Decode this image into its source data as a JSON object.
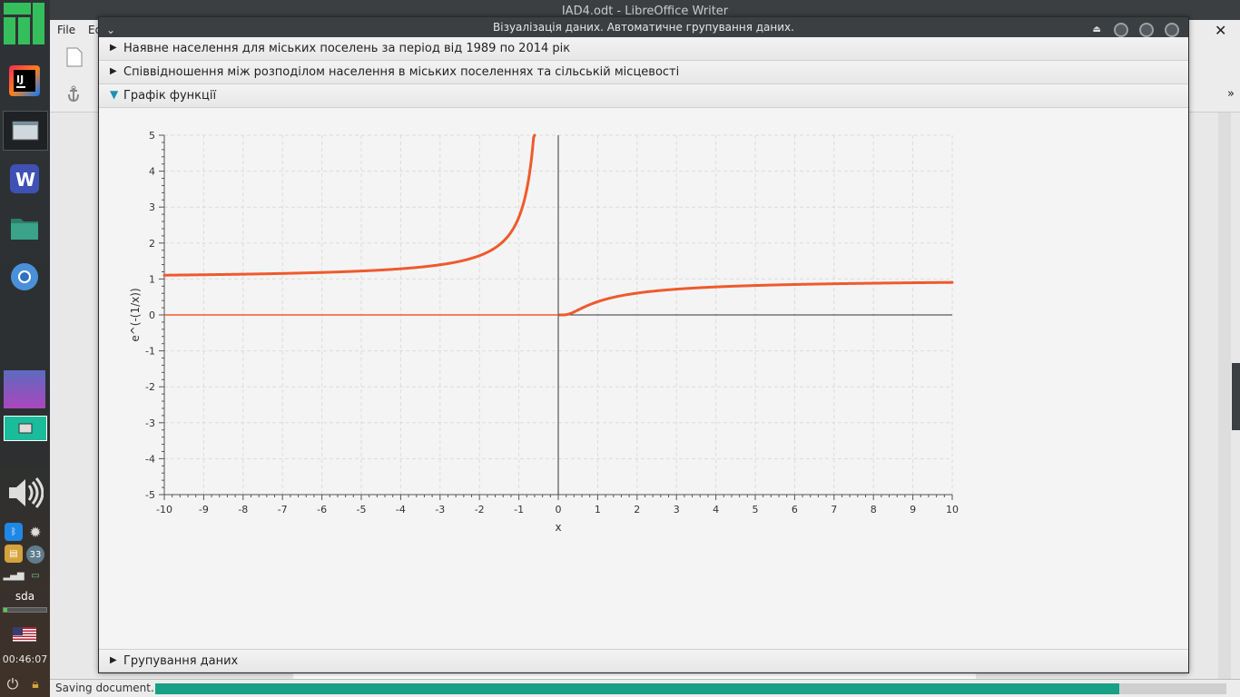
{
  "writer": {
    "title": "IAD4.odt - LibreOffice Writer",
    "menu": [
      "File",
      "Ed"
    ],
    "status_text": "Saving document...",
    "progress": 0.9
  },
  "dock": {
    "clock": "00:46:07",
    "drive_label": "sda",
    "badge": "33"
  },
  "dialog": {
    "title": "Візуалізація даних. Автоматичне групування даних.",
    "sections": [
      {
        "label": "Наявне населення для міських поселень за період від 1989 по 2014 рік",
        "expanded": false
      },
      {
        "label": "Співвідношення між розподілом населення в міських поселеннях та сільській місцевості",
        "expanded": false
      },
      {
        "label": "Графік функції",
        "expanded": true
      },
      {
        "label": "Групування даних",
        "expanded": false
      }
    ]
  },
  "chart_data": {
    "type": "line",
    "function": "e^(-(1/x))",
    "xlabel": "x",
    "ylabel": "e^(-(1/x))",
    "xlim": [
      -10,
      10
    ],
    "ylim": [
      -5,
      5
    ],
    "x_ticks": [
      "-10",
      "-9",
      "-8",
      "-7",
      "-6",
      "-5",
      "-4",
      "-3",
      "-2",
      "-1",
      "0",
      "1",
      "2",
      "3",
      "4",
      "5",
      "6",
      "7",
      "8",
      "9",
      "10"
    ],
    "y_ticks": [
      "5",
      "4",
      "3",
      "2",
      "1",
      "0",
      "-1",
      "-2",
      "-3",
      "-4",
      "-5"
    ],
    "grid": true,
    "line_color": "#ee5a2e",
    "series": [
      {
        "x": [
          -10,
          -8,
          -6,
          -4,
          -3,
          -2,
          -1.5,
          -1,
          -0.8,
          -0.6
        ],
        "y": [
          1.105,
          1.133,
          1.181,
          1.284,
          1.396,
          1.649,
          1.948,
          2.718,
          3.49,
          5.294
        ]
      },
      {
        "x": [
          0.2,
          0.3,
          0.5,
          1,
          1.5,
          2,
          3,
          4,
          5,
          6,
          8,
          10
        ],
        "y": [
          0.007,
          0.036,
          0.135,
          0.368,
          0.513,
          0.607,
          0.717,
          0.779,
          0.819,
          0.846,
          0.882,
          0.905
        ]
      }
    ]
  }
}
